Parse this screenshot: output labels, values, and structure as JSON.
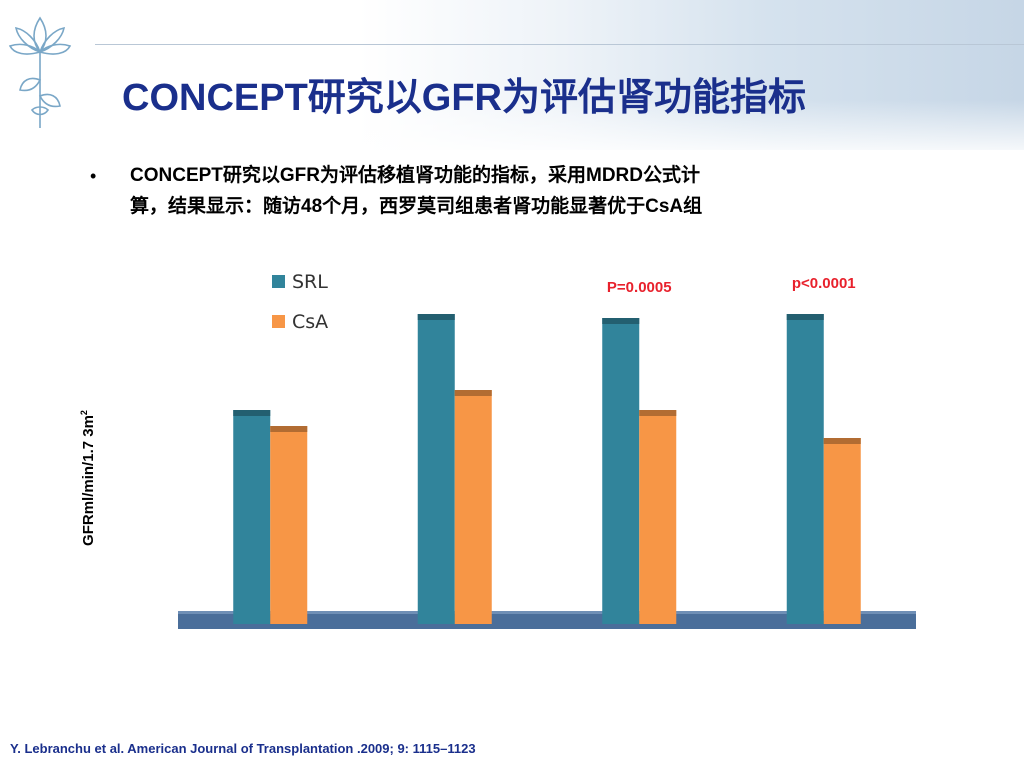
{
  "slide": {
    "title": "CONCEPT研究以GFR为评估肾功能指标",
    "bullet_line1": "CONCEPT研究以GFR为评估移植肾功能的指标，采用MDRD公式计",
    "bullet_line2": "算，结果显示：随访48个月，西罗莫司组患者肾功能显著优于CsA组",
    "citation": "Y. Lebranchu et al. American Journal of Transplantation .2009; 9: 1115–1123"
  },
  "chart_data": {
    "type": "bar",
    "categories": [
      "",
      "",
      "",
      ""
    ],
    "series": [
      {
        "name": "SRL",
        "values": [
          53,
          77,
          76,
          77
        ],
        "color": "#31849b"
      },
      {
        "name": "CsA",
        "values": [
          49,
          58,
          53,
          46
        ],
        "color": "#f79646"
      }
    ],
    "annotations": [
      {
        "text": "P=0.0005",
        "category_index": 2,
        "color": "#e8212c"
      },
      {
        "text": "p<0.0001",
        "category_index": 3,
        "color": "#e8212c"
      }
    ],
    "title": "",
    "xlabel": "",
    "ylabel_main": "GFRml/min/1.7 3m",
    "ylabel_sup": "2",
    "ylim": [
      0,
      80
    ],
    "grid": false,
    "legend_position": "top-left"
  }
}
